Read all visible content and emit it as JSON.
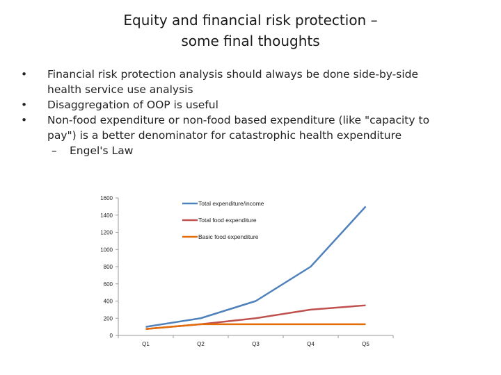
{
  "slide": {
    "title_line1": "Equity and financial risk protection –",
    "title_line2": "some final thoughts",
    "bullets": [
      {
        "marker": "•",
        "text_line1": "Financial risk protection analysis should always be done side-by-side",
        "text_line2": "health service use analysis"
      },
      {
        "marker": "•",
        "text_line1": "Disaggregation of OOP is useful"
      },
      {
        "marker": "•",
        "text_line1": "Non-food expenditure or non-food based expenditure (like \"capacity to",
        "text_line2": "pay\") is a better denominator for catastrophic health expenditure"
      }
    ],
    "sub_bullet": {
      "marker": "–",
      "text": "Engel's Law"
    }
  },
  "chart_data": {
    "type": "line",
    "categories": [
      "Q1",
      "Q2",
      "Q3",
      "Q4",
      "Q5"
    ],
    "ylim": [
      0,
      1600
    ],
    "yticks": [
      0,
      200,
      400,
      600,
      800,
      1000,
      1200,
      1400,
      1600
    ],
    "grid": false,
    "legend_position": "top-right",
    "series": [
      {
        "name": "Total expenditure/income",
        "color": "#4f81bd",
        "values": [
          100,
          200,
          400,
          800,
          1500
        ]
      },
      {
        "name": "Total food expenditure",
        "color": "#c0504d",
        "values": [
          75,
          130,
          200,
          300,
          350
        ]
      },
      {
        "name": "Basic food expenditure",
        "color": "#e36c0a",
        "values": [
          75,
          130,
          130,
          130,
          130
        ]
      }
    ]
  }
}
